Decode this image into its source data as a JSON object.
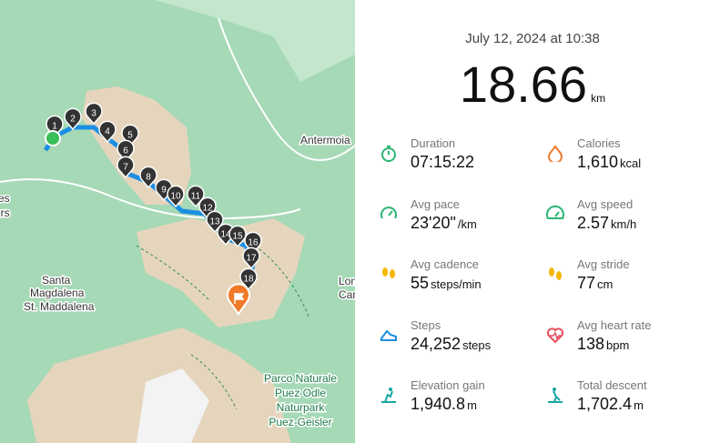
{
  "map": {
    "labels": {
      "antermoia": "Antermoia",
      "santa": "Santa",
      "magdalena": "Magdalena",
      "maddalena": "St. Maddalena",
      "park1": "Parco Naturale",
      "park2": "Puez Odle",
      "park3": "Naturpark",
      "park4": "Puez-Geisler",
      "cut1": "res",
      "cut2": "ers",
      "cut3": "Lon",
      "cut4": "Car"
    },
    "markers": [
      "1",
      "2",
      "3",
      "4",
      "5",
      "6",
      "7",
      "8",
      "9",
      "10",
      "11",
      "12",
      "13",
      "14",
      "15",
      "16",
      "17",
      "18"
    ]
  },
  "summary": {
    "date": "July 12, 2024 at 10:38",
    "distance": "18.66",
    "distance_unit": "km"
  },
  "stats": [
    {
      "label": "Duration",
      "value": "07:15:22",
      "unit": ""
    },
    {
      "label": "Calories",
      "value": "1,610",
      "unit": "kcal"
    },
    {
      "label": "Avg pace",
      "value": "23'20\"",
      "unit": "/km"
    },
    {
      "label": "Avg speed",
      "value": "2.57",
      "unit": "km/h"
    },
    {
      "label": "Avg cadence",
      "value": "55",
      "unit": "steps/min"
    },
    {
      "label": "Avg stride",
      "value": "77",
      "unit": "cm"
    },
    {
      "label": "Steps",
      "value": "24,252",
      "unit": "steps"
    },
    {
      "label": "Avg heart rate",
      "value": "138",
      "unit": "bpm"
    },
    {
      "label": "Elevation gain",
      "value": "1,940.8",
      "unit": "m"
    },
    {
      "label": "Total descent",
      "value": "1,702.4",
      "unit": "m"
    }
  ]
}
